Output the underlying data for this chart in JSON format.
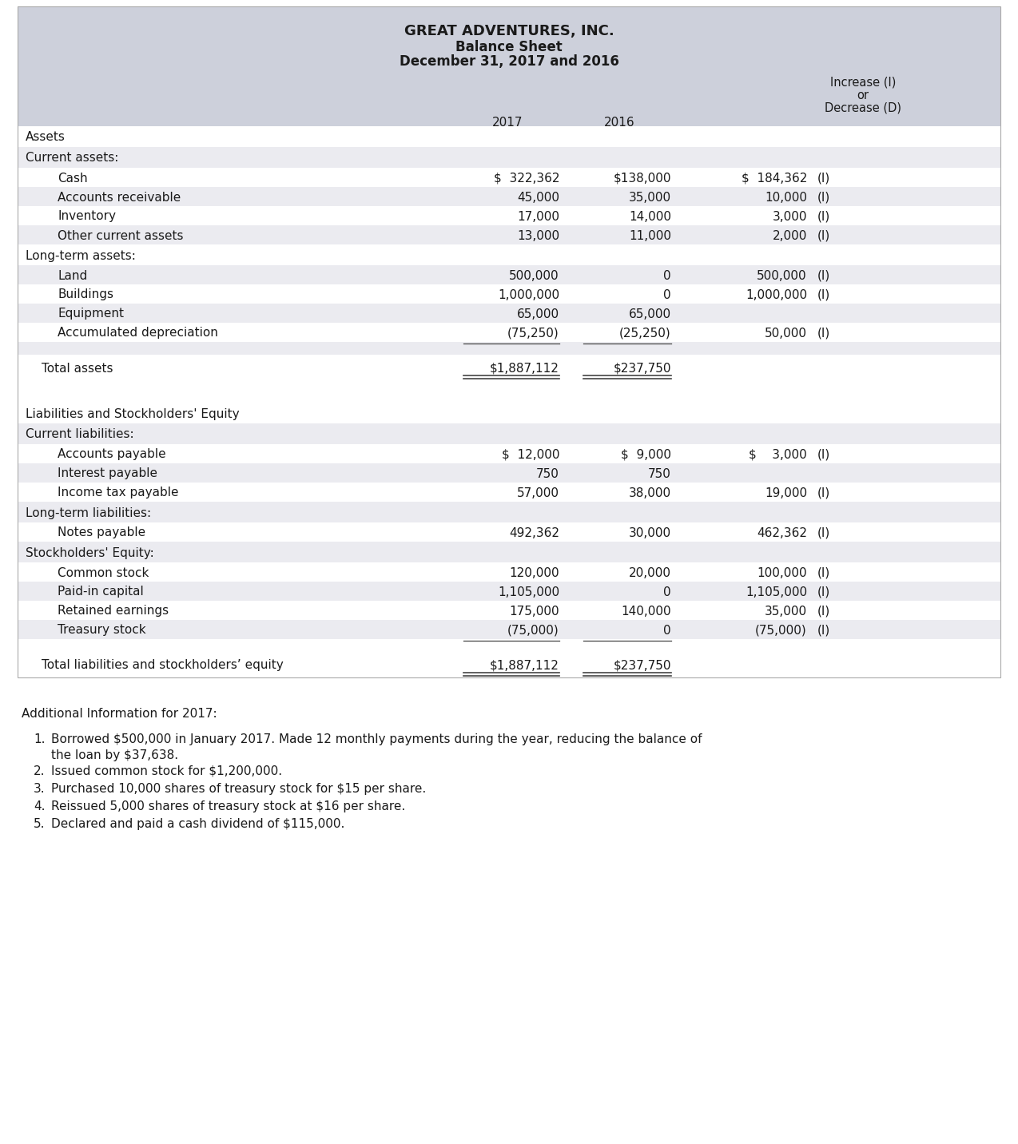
{
  "title_line1": "GREAT ADVENTURES, INC.",
  "title_line2": "Balance Sheet",
  "title_line3": "December 31, 2017 and 2016",
  "header_bg": "#cdd0db",
  "row_bg_light": "#ebebf0",
  "row_bg_white": "#ffffff",
  "text_color": "#1a1a1a",
  "fig_bg": "#ffffff",
  "rows": [
    {
      "label": "Assets",
      "indent": 0,
      "type": "section_header",
      "v17": "",
      "v16": "",
      "chg": "",
      "ind": "",
      "bg": "white"
    },
    {
      "label": "Current assets:",
      "indent": 0,
      "type": "subsection",
      "v17": "",
      "v16": "",
      "chg": "",
      "ind": "",
      "bg": "light"
    },
    {
      "label": "Cash",
      "indent": 1,
      "type": "data",
      "v17": "$  322,362",
      "v16": "$138,000",
      "chg": "$  184,362",
      "ind": "(I)",
      "bg": "white"
    },
    {
      "label": "Accounts receivable",
      "indent": 1,
      "type": "data",
      "v17": "45,000",
      "v16": "35,000",
      "chg": "10,000",
      "ind": "(I)",
      "bg": "light"
    },
    {
      "label": "Inventory",
      "indent": 1,
      "type": "data",
      "v17": "17,000",
      "v16": "14,000",
      "chg": "3,000",
      "ind": "(I)",
      "bg": "white"
    },
    {
      "label": "Other current assets",
      "indent": 1,
      "type": "data",
      "v17": "13,000",
      "v16": "11,000",
      "chg": "2,000",
      "ind": "(I)",
      "bg": "light"
    },
    {
      "label": "Long-term assets:",
      "indent": 0,
      "type": "subsection",
      "v17": "",
      "v16": "",
      "chg": "",
      "ind": "",
      "bg": "white"
    },
    {
      "label": "Land",
      "indent": 1,
      "type": "data",
      "v17": "500,000",
      "v16": "0",
      "chg": "500,000",
      "ind": "(I)",
      "bg": "light"
    },
    {
      "label": "Buildings",
      "indent": 1,
      "type": "data",
      "v17": "1,000,000",
      "v16": "0",
      "chg": "1,000,000",
      "ind": "(I)",
      "bg": "white"
    },
    {
      "label": "Equipment",
      "indent": 1,
      "type": "data",
      "v17": "65,000",
      "v16": "65,000",
      "chg": "",
      "ind": "",
      "bg": "light"
    },
    {
      "label": "Accumulated depreciation",
      "indent": 1,
      "type": "data",
      "v17": "(75,250)",
      "v16": "(25,250)",
      "chg": "50,000",
      "ind": "(I)",
      "bg": "white"
    },
    {
      "label": "",
      "indent": 0,
      "type": "spacer",
      "v17": "",
      "v16": "",
      "chg": "",
      "ind": "",
      "bg": "light"
    },
    {
      "label": "Total assets",
      "indent": 0,
      "type": "total",
      "v17": "$1,887,112",
      "v16": "$237,750",
      "chg": "",
      "ind": "",
      "bg": "white"
    },
    {
      "label": "",
      "indent": 0,
      "type": "gap",
      "v17": "",
      "v16": "",
      "chg": "",
      "ind": "",
      "bg": "white"
    },
    {
      "label": "Liabilities and Stockholders' Equity",
      "indent": 0,
      "type": "section_header",
      "v17": "",
      "v16": "",
      "chg": "",
      "ind": "",
      "bg": "white"
    },
    {
      "label": "Current liabilities:",
      "indent": 0,
      "type": "subsection",
      "v17": "",
      "v16": "",
      "chg": "",
      "ind": "",
      "bg": "light"
    },
    {
      "label": "Accounts payable",
      "indent": 1,
      "type": "data",
      "v17": "$  12,000",
      "v16": "$  9,000",
      "chg": "$    3,000",
      "ind": "(I)",
      "bg": "white"
    },
    {
      "label": "Interest payable",
      "indent": 1,
      "type": "data",
      "v17": "750",
      "v16": "750",
      "chg": "",
      "ind": "",
      "bg": "light"
    },
    {
      "label": "Income tax payable",
      "indent": 1,
      "type": "data",
      "v17": "57,000",
      "v16": "38,000",
      "chg": "19,000",
      "ind": "(I)",
      "bg": "white"
    },
    {
      "label": "Long-term liabilities:",
      "indent": 0,
      "type": "subsection",
      "v17": "",
      "v16": "",
      "chg": "",
      "ind": "",
      "bg": "light"
    },
    {
      "label": "Notes payable",
      "indent": 1,
      "type": "data",
      "v17": "492,362",
      "v16": "30,000",
      "chg": "462,362",
      "ind": "(I)",
      "bg": "white"
    },
    {
      "label": "Stockholders' Equity:",
      "indent": 0,
      "type": "subsection",
      "v17": "",
      "v16": "",
      "chg": "",
      "ind": "",
      "bg": "light"
    },
    {
      "label": "Common stock",
      "indent": 1,
      "type": "data",
      "v17": "120,000",
      "v16": "20,000",
      "chg": "100,000",
      "ind": "(I)",
      "bg": "white"
    },
    {
      "label": "Paid-in capital",
      "indent": 1,
      "type": "data",
      "v17": "1,105,000",
      "v16": "0",
      "chg": "1,105,000",
      "ind": "(I)",
      "bg": "light"
    },
    {
      "label": "Retained earnings",
      "indent": 1,
      "type": "data",
      "v17": "175,000",
      "v16": "140,000",
      "chg": "35,000",
      "ind": "(I)",
      "bg": "white"
    },
    {
      "label": "Treasury stock",
      "indent": 1,
      "type": "data",
      "v17": "(75,000)",
      "v16": "0",
      "chg": "(75,000)",
      "ind": "(I)",
      "bg": "light"
    },
    {
      "label": "",
      "indent": 0,
      "type": "spacer",
      "v17": "",
      "v16": "",
      "chg": "",
      "ind": "",
      "bg": "white"
    },
    {
      "label": "Total liabilities and stockholders’ equity",
      "indent": 0,
      "type": "total",
      "v17": "$1,887,112",
      "v16": "$237,750",
      "chg": "",
      "ind": "",
      "bg": "white"
    }
  ],
  "add_title": "Additional Information for 2017:",
  "add_items": [
    "Borrowed $500,000 in January 2017. Made 12 monthly payments during the year, reducing the balance of the loan by $37,638.",
    "Issued common stock for $1,200,000.",
    "Purchased 10,000 shares of treasury stock for $15 per share.",
    "Reissued 5,000 shares of treasury stock at $16 per share.",
    "Declared and paid a cash dividend of $115,000."
  ]
}
